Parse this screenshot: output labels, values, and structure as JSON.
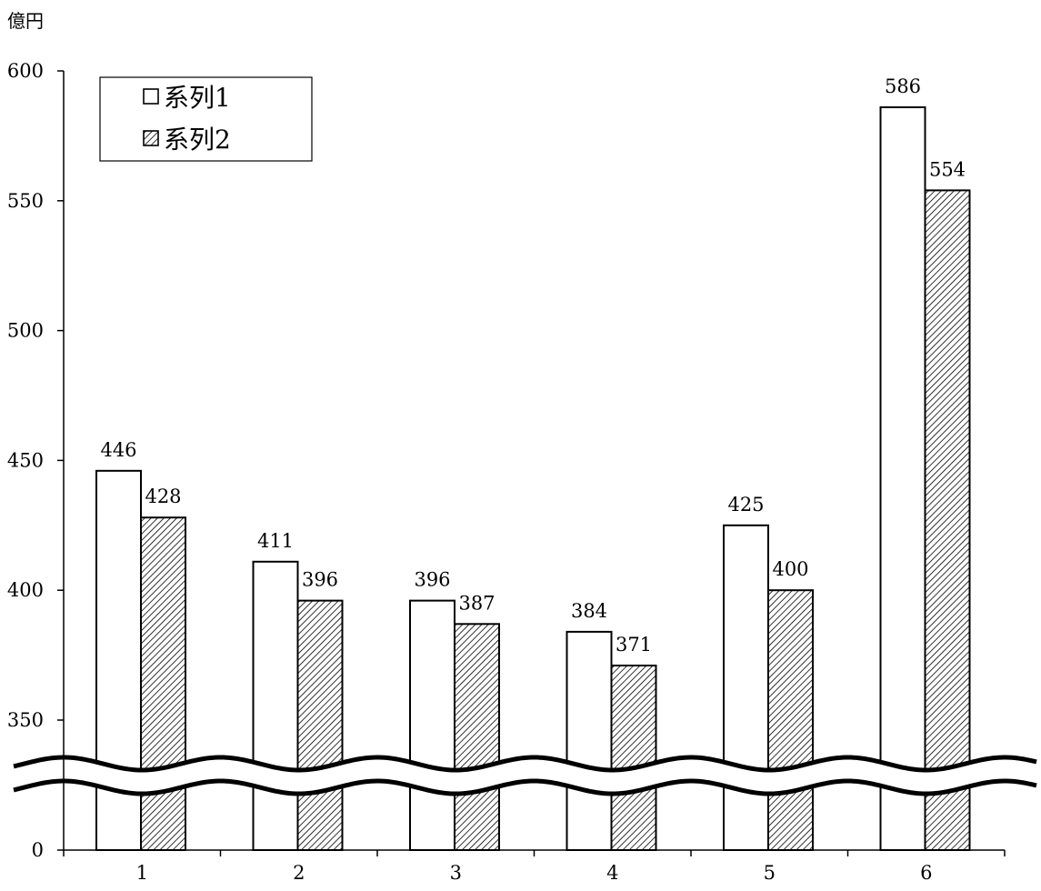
{
  "chart_data": {
    "type": "bar",
    "unit_label": "億円",
    "categories": [
      "1",
      "2",
      "3",
      "4",
      "5",
      "6"
    ],
    "series": [
      {
        "name": "系列1",
        "values": [
          446,
          411,
          396,
          384,
          425,
          586
        ],
        "fill": "#ffffff"
      },
      {
        "name": "系列2",
        "values": [
          428,
          396,
          387,
          371,
          400,
          554
        ],
        "fill": "hatch"
      }
    ],
    "y_ticks": [
      "600",
      "550",
      "500",
      "450",
      "400",
      "350",
      "0"
    ],
    "ylim": [
      0,
      600
    ],
    "axis_break": {
      "from": 0,
      "to": 350
    },
    "legend_position": "top-left",
    "grid": false
  }
}
